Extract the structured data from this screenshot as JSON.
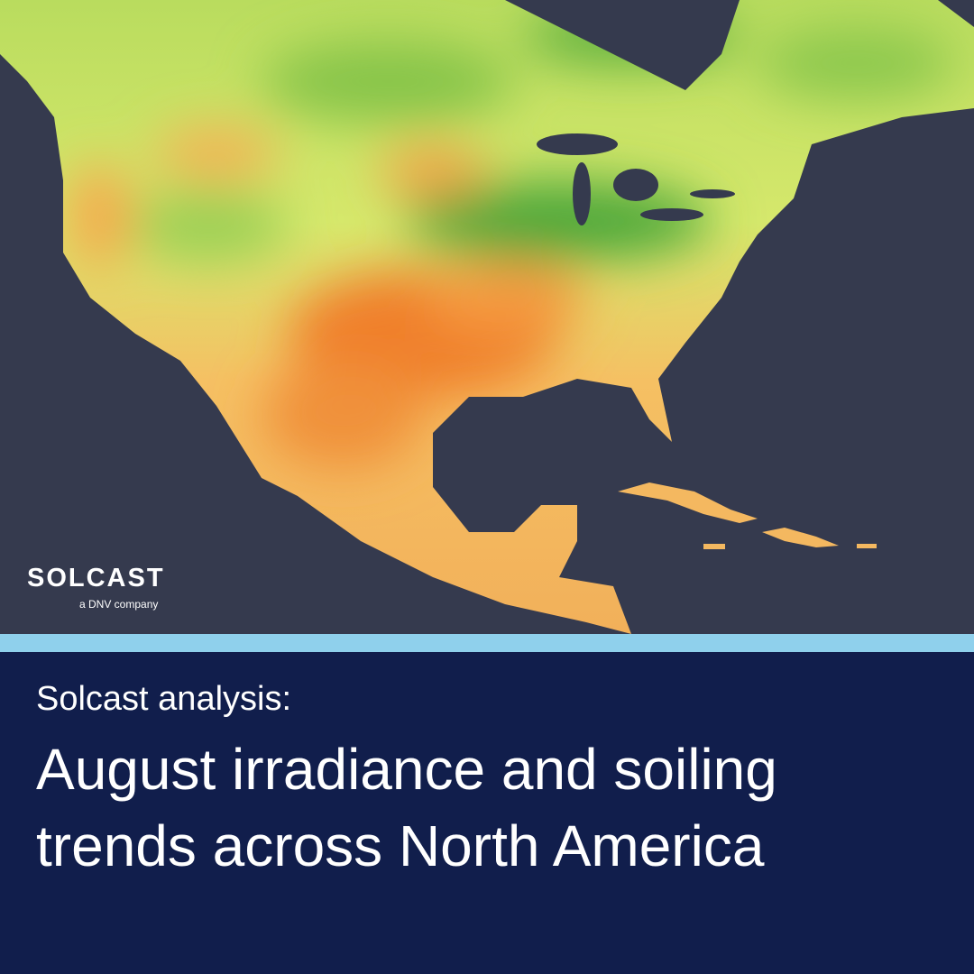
{
  "brand": {
    "name": "SOLCAST",
    "tagline": "a DNV company"
  },
  "heading": {
    "kicker": "Solcast analysis:",
    "title": "August irradiance and soiling trends across North America"
  }
}
